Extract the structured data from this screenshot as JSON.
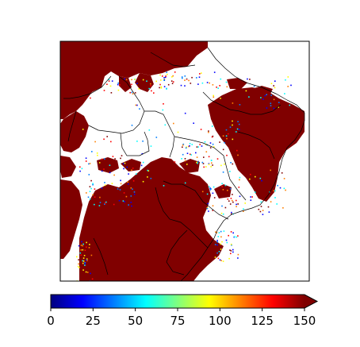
{
  "map": {
    "region": "Brazil and surrounding South America",
    "fill_color": "#800000",
    "background_color": "#ffffff",
    "border_color": "#000000",
    "field": "precipitation-like gridded field, masked white where below threshold"
  },
  "colorbar": {
    "colormap": "jet",
    "vmin": 0,
    "vmax": 150,
    "extend": "max",
    "ticks": [
      "0",
      "25",
      "50",
      "75",
      "100",
      "125",
      "150"
    ],
    "tick_values": [
      0,
      25,
      50,
      75,
      100,
      125,
      150
    ],
    "stops": [
      "#00007f",
      "#0000ff",
      "#007fff",
      "#00ffff",
      "#7fff7f",
      "#ffff00",
      "#ff7f00",
      "#ff0000",
      "#7f0000"
    ]
  }
}
